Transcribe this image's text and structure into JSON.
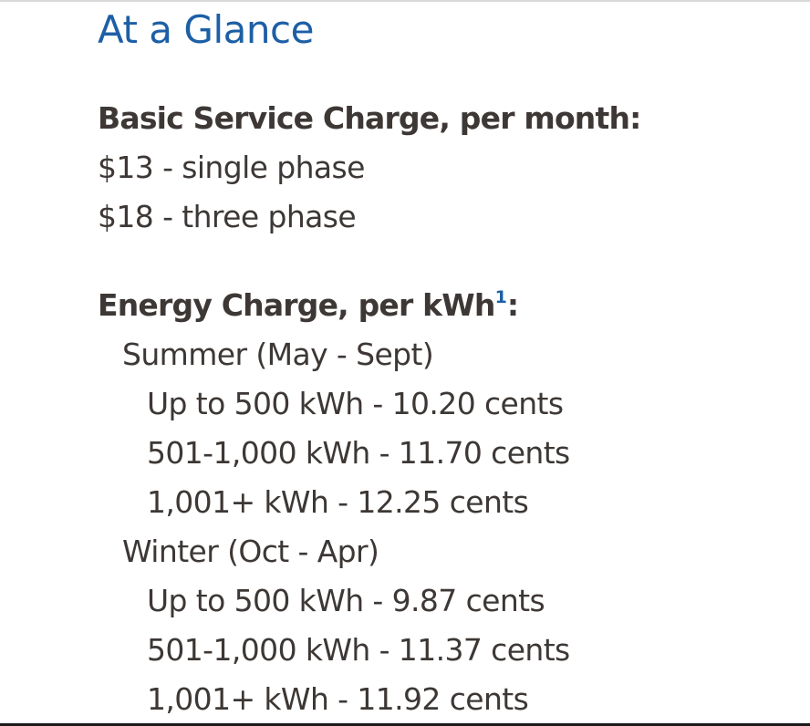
{
  "title": "At a Glance",
  "basic_service": {
    "heading": "Basic Service Charge, per month:",
    "items": [
      "$13 - single phase",
      "$18 - three phase"
    ]
  },
  "energy": {
    "heading": "Energy Charge, per kWh",
    "footnote": "1",
    "colon": ":",
    "seasons": [
      {
        "label": "Summer (May - Sept)",
        "tiers": [
          "Up to 500 kWh - 10.20 cents",
          "501-1,000 kWh - 11.70 cents",
          "1,001+ kWh - 12.25 cents"
        ]
      },
      {
        "label": "Winter (Oct - Apr)",
        "tiers": [
          "Up to 500 kWh - 9.87 cents",
          "501-1,000 kWh - 11.37 cents",
          "1,001+ kWh - 11.92 cents"
        ]
      }
    ]
  }
}
